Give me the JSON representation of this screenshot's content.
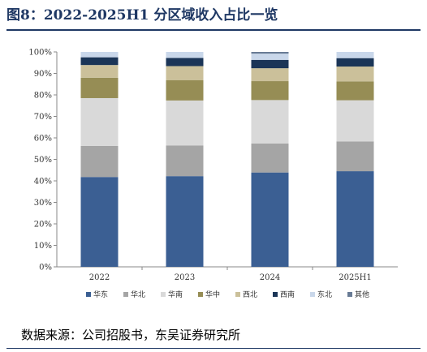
{
  "title": "图8：2022-2025H1 分区域收入占比一览",
  "source": "数据来源：公司招股书，东吴证券研究所",
  "chart_data": {
    "type": "bar",
    "stacked": true,
    "categories": [
      "2022",
      "2023",
      "2024",
      "2025H1"
    ],
    "ylim": [
      0,
      100
    ],
    "yticks": [
      "0%",
      "10%",
      "20%",
      "30%",
      "40%",
      "50%",
      "60%",
      "70%",
      "80%",
      "90%",
      "100%"
    ],
    "legend_position": "bottom",
    "series": [
      {
        "name": "华东",
        "color": "#3b5f93",
        "values": [
          41.8,
          42.2,
          43.9,
          44.5
        ]
      },
      {
        "name": "华北",
        "color": "#a5a5a5",
        "values": [
          14.5,
          14.3,
          13.5,
          13.8
        ]
      },
      {
        "name": "华南",
        "color": "#d9d9d9",
        "values": [
          22.2,
          20.9,
          20.2,
          19.2
        ]
      },
      {
        "name": "华中",
        "color": "#968d55",
        "values": [
          9.5,
          9.5,
          8.8,
          8.8
        ]
      },
      {
        "name": "西北",
        "color": "#cbc09a",
        "values": [
          5.9,
          6.5,
          6.0,
          6.9
        ]
      },
      {
        "name": "西南",
        "color": "#1b3557",
        "values": [
          3.6,
          3.8,
          3.9,
          3.9
        ]
      },
      {
        "name": "东北",
        "color": "#c9d7ea",
        "values": [
          2.5,
          2.8,
          2.9,
          2.9
        ]
      },
      {
        "name": "其他",
        "color": "#687b95",
        "values": [
          0.0,
          0.0,
          0.8,
          0.0
        ]
      }
    ]
  }
}
